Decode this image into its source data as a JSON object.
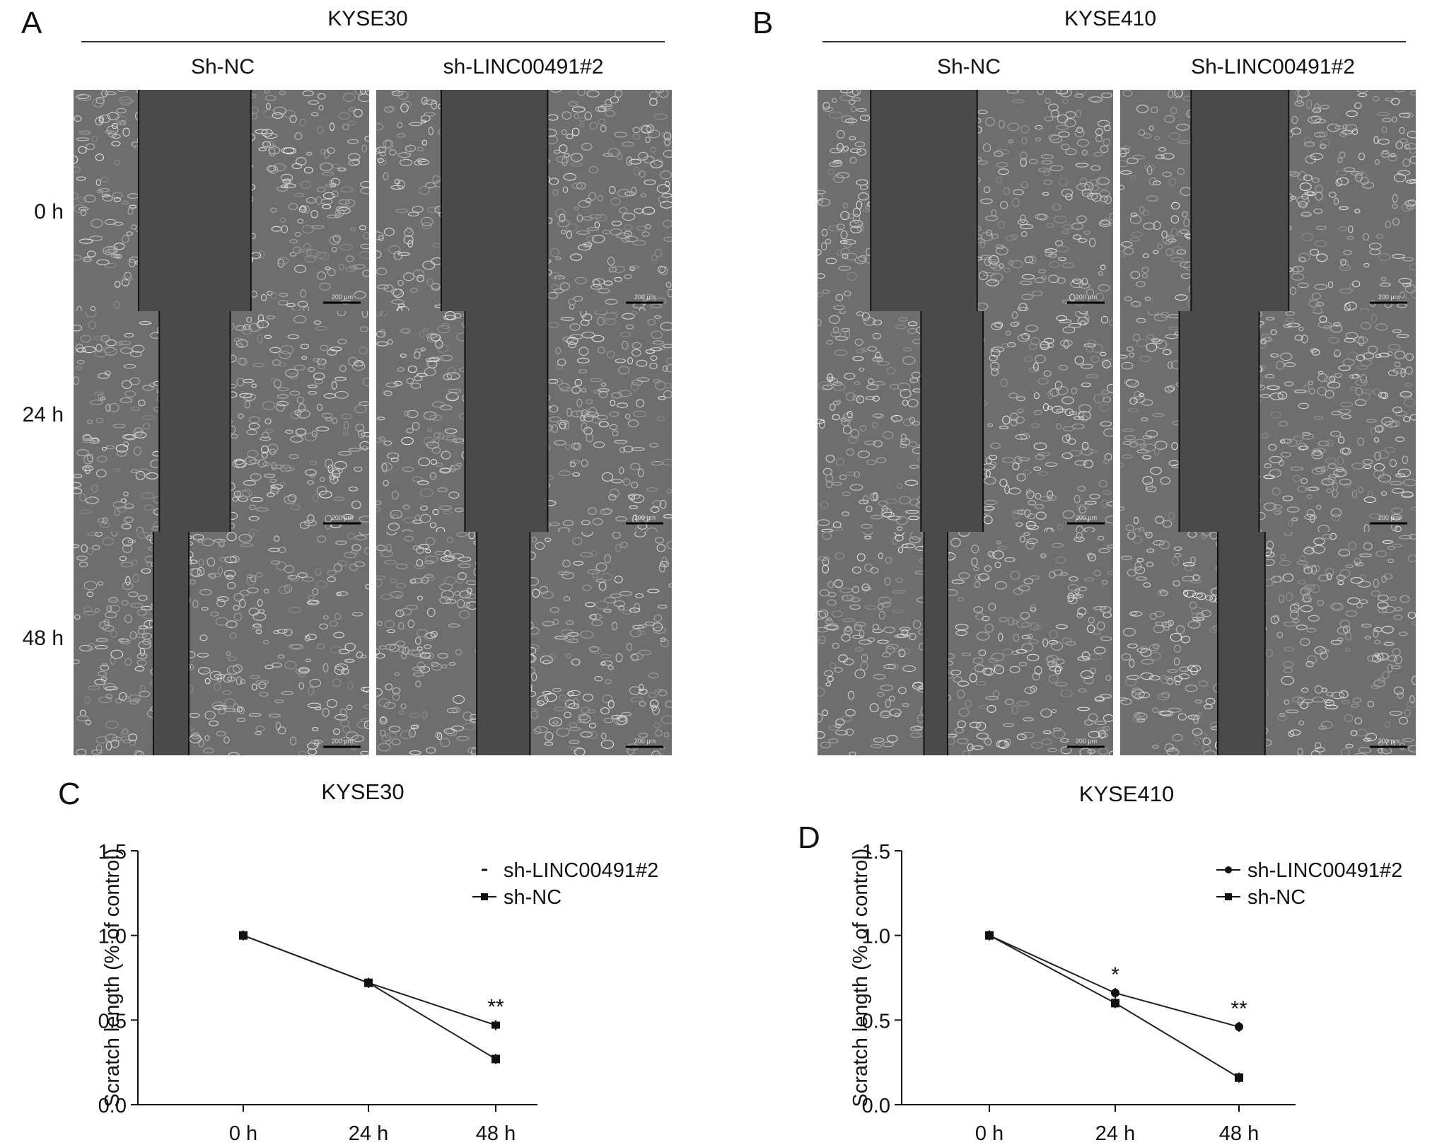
{
  "panels": {
    "A": {
      "letter": "A",
      "cell_line": "KYSE30",
      "columns": [
        "Sh-NC",
        "sh-LINC00491#2"
      ],
      "rows": [
        "0 h",
        "24 h",
        "48 h"
      ],
      "scale_bar": "200 μm"
    },
    "B": {
      "letter": "B",
      "cell_line": "KYSE410",
      "columns": [
        "Sh-NC",
        "Sh-LINC00491#2"
      ],
      "rows": [
        "0 h",
        "24 h",
        "48 h"
      ],
      "scale_bar": "200 μm"
    }
  },
  "chart_data": [
    {
      "panel": "C",
      "type": "line",
      "title": "KYSE30",
      "xlabel": "",
      "ylabel": "Scratch length (% of control)",
      "categories": [
        "0 h",
        "24 h",
        "48 h"
      ],
      "ylim": [
        0.0,
        1.5
      ],
      "yticks": [
        "0.0",
        "0.5",
        "1.0",
        "1.5"
      ],
      "legend_position": "top-right",
      "series": [
        {
          "name": "sh-LINC00491#2",
          "values": [
            1.0,
            0.72,
            0.47
          ],
          "marker": "dash"
        },
        {
          "name": "sh-NC",
          "values": [
            1.0,
            0.72,
            0.27
          ],
          "marker": "square"
        }
      ],
      "annotations": [
        {
          "category": "48 h",
          "text": "**"
        }
      ]
    },
    {
      "panel": "D",
      "type": "line",
      "title": "KYSE410",
      "xlabel": "",
      "ylabel": "Scratch length (% of control)",
      "categories": [
        "0 h",
        "24 h",
        "48 h"
      ],
      "ylim": [
        0.0,
        1.5
      ],
      "yticks": [
        "0.0",
        "0.5",
        "1.0",
        "1.5"
      ],
      "legend_position": "top-right",
      "series": [
        {
          "name": "sh-LINC00491#2",
          "values": [
            1.0,
            0.66,
            0.46
          ],
          "marker": "circle"
        },
        {
          "name": "sh-NC",
          "values": [
            1.0,
            0.6,
            0.16
          ],
          "marker": "square"
        }
      ],
      "annotations": [
        {
          "category": "24 h",
          "text": "*"
        },
        {
          "category": "48 h",
          "text": "**"
        }
      ]
    }
  ]
}
